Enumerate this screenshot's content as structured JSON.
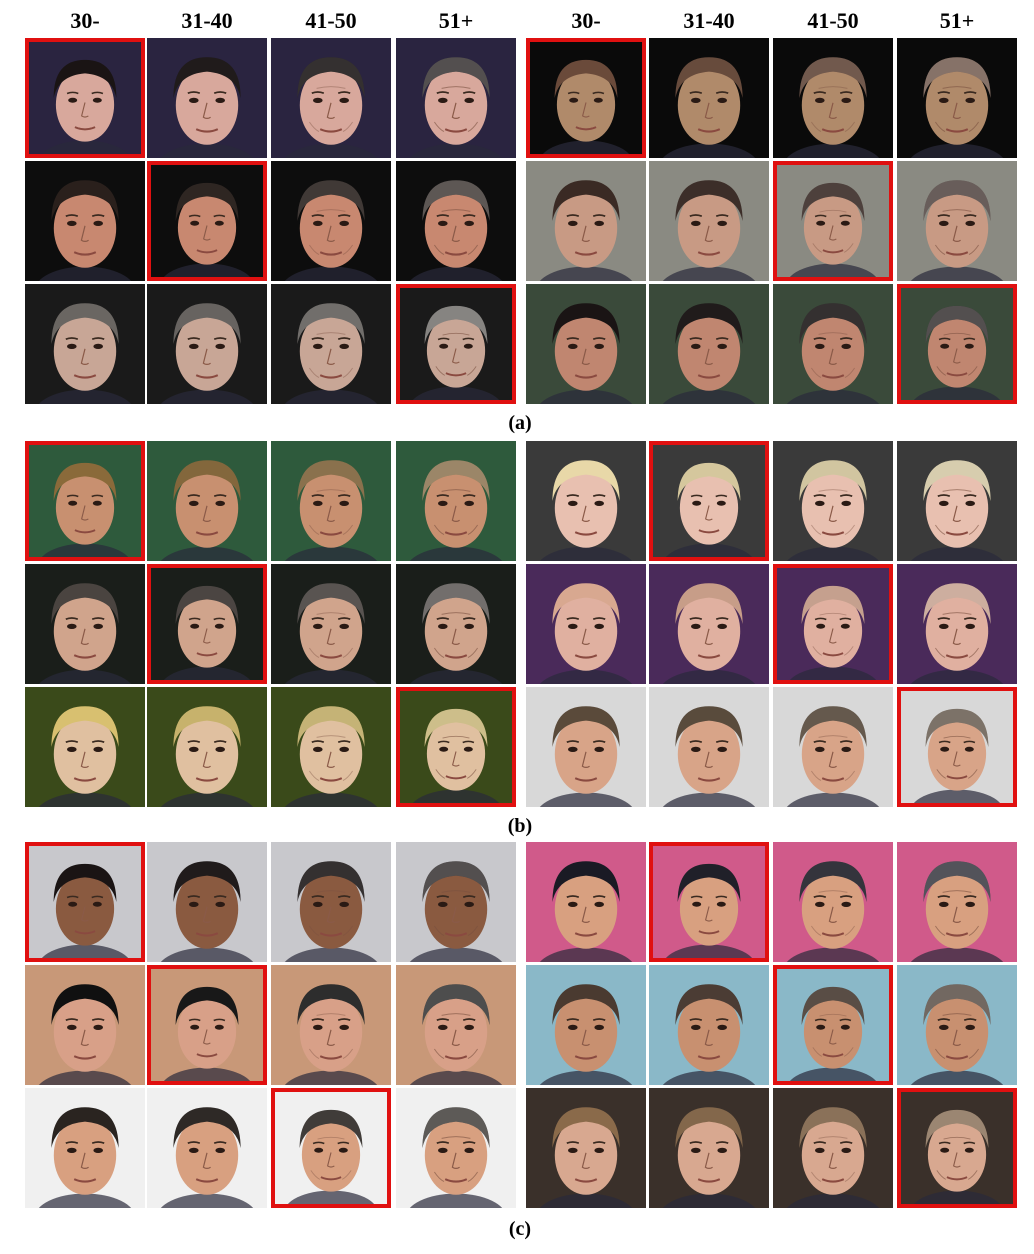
{
  "column_headers": [
    "30-",
    "31-40",
    "41-50",
    "51+"
  ],
  "panels": [
    {
      "label": "(a)",
      "left": {
        "selected": [
          0,
          1,
          3
        ],
        "bg": [
          "#2a2440",
          "#0d0d0d",
          "#1a1a1a"
        ],
        "hair": [
          "#1a1414",
          "#2a201c",
          "#6a6662"
        ],
        "skin": [
          "#d8a89c",
          "#c88870",
          "#c8a696"
        ]
      },
      "right": {
        "selected": [
          0,
          2,
          3
        ],
        "bg": [
          "#0a0a0a",
          "#8a8a82",
          "#3a4a3a"
        ],
        "hair": [
          "#6a4a3a",
          "#3a2a24",
          "#1a1414"
        ],
        "skin": [
          "#b08a6a",
          "#c89a84",
          "#c08670"
        ]
      }
    },
    {
      "label": "(b)",
      "left": {
        "selected": [
          0,
          1,
          3
        ],
        "bg": [
          "#2e5a3c",
          "#1a1e1a",
          "#3a4a1a"
        ],
        "hair": [
          "#8a6a3a",
          "#4a4440",
          "#d8c070"
        ],
        "skin": [
          "#c89070",
          "#d0a48c",
          "#e0c0a0"
        ]
      },
      "right": {
        "selected": [
          1,
          2,
          3
        ],
        "bg": [
          "#3a3a3a",
          "#4a2a5a",
          "#d8d8d8"
        ],
        "hair": [
          "#e8d8a8",
          "#d8a890",
          "#5a4a3a"
        ],
        "skin": [
          "#e8c0b0",
          "#e0b0a0",
          "#d8a488"
        ]
      }
    },
    {
      "label": "(c)",
      "left": {
        "selected": [
          0,
          1,
          2
        ],
        "bg": [
          "#c8c8cc",
          "#c89878",
          "#f0f0f0"
        ],
        "hair": [
          "#1a1414",
          "#101010",
          "#2a2420"
        ],
        "skin": [
          "#8a5a40",
          "#d8a088",
          "#d8a080"
        ]
      },
      "right": {
        "selected": [
          1,
          2,
          3
        ],
        "bg": [
          "#d05a8a",
          "#8ab8c8",
          "#3a302a"
        ],
        "hair": [
          "#1a1a24",
          "#4a3a30",
          "#8a6a4a"
        ],
        "skin": [
          "#d8a080",
          "#c89070",
          "#d8a890"
        ]
      }
    }
  ]
}
